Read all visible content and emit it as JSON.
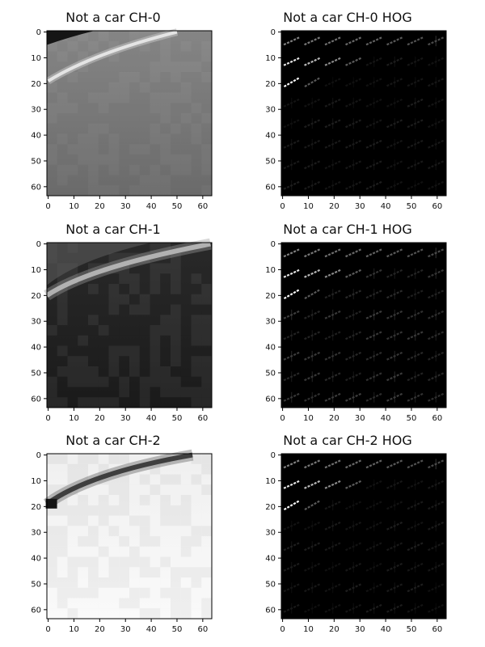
{
  "figure": {
    "panels": [
      {
        "id": "p0",
        "title": "Not a car CH-0",
        "kind": "image",
        "style": "ch0"
      },
      {
        "id": "p1",
        "title": "Not a car CH-0 HOG",
        "kind": "hog",
        "style": "hog0"
      },
      {
        "id": "p2",
        "title": "Not a car CH-1",
        "kind": "image",
        "style": "ch1"
      },
      {
        "id": "p3",
        "title": "Not a car CH-1 HOG",
        "kind": "hog",
        "style": "hog1"
      },
      {
        "id": "p4",
        "title": "Not a car CH-2",
        "kind": "image",
        "style": "ch2"
      },
      {
        "id": "p5",
        "title": "Not a car CH-2 HOG",
        "kind": "hog",
        "style": "hog2"
      }
    ],
    "xticks": [
      "0",
      "10",
      "20",
      "30",
      "40",
      "50",
      "60"
    ],
    "yticks": [
      "0",
      "10",
      "20",
      "30",
      "40",
      "50",
      "60"
    ],
    "image_size": 64
  }
}
